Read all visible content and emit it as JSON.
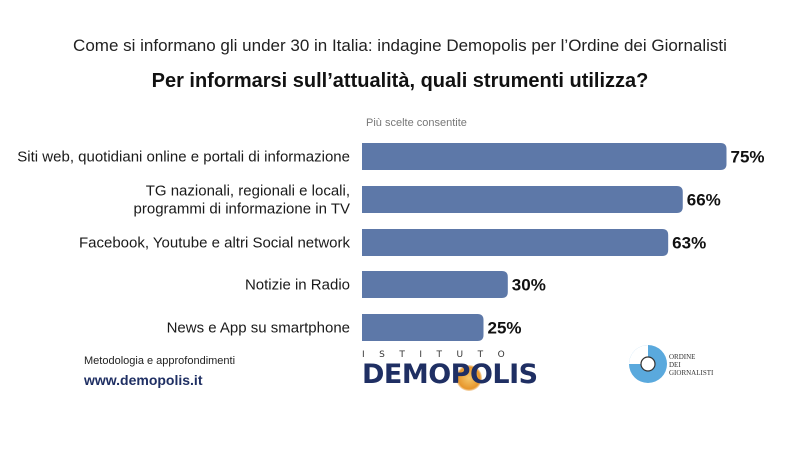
{
  "header": {
    "supertitle": "Come si informano gli under 30 in Italia: indagine Demopolis per l’Ordine dei Giornalisti",
    "title": "Per informarsi sull’attualità, quali strumenti utilizza?",
    "subtitle": "Più scelte consentite"
  },
  "chart_data": {
    "type": "bar",
    "orientation": "horizontal",
    "categories": [
      [
        "Siti web, quotidiani online e portali di informazione"
      ],
      [
        "TG nazionali, regionali e locali,",
        "programmi di informazione in TV"
      ],
      [
        "Facebook, Youtube e altri Social network"
      ],
      [
        "Notizie in Radio"
      ],
      [
        "News e App su smartphone"
      ]
    ],
    "values": [
      75,
      66,
      63,
      30,
      25
    ],
    "value_labels": [
      "75%",
      "66%",
      "63%",
      "30%",
      "25%"
    ],
    "unit": "%",
    "xlim": [
      0,
      100
    ],
    "bar_color": "#5d78a8",
    "grid": false,
    "legend": "none"
  },
  "footer": {
    "method_label": "Metodologia e approfondimenti",
    "website": "www.demopolis.it",
    "demopolis_top": "ISTITUTO",
    "demopolis_word": "DEMOPOLIS",
    "odg_lines": [
      "ORDINE",
      "DEI",
      "GIORNALISTI"
    ]
  }
}
